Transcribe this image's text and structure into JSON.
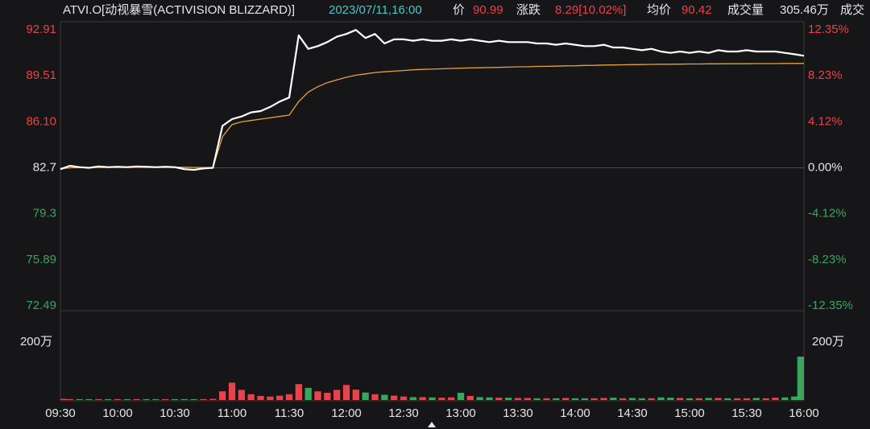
{
  "chart_data": {
    "type": "intraday",
    "header": {
      "title": "ATVI.O[动视暴雪(ACTIVISION BLIZZARD)]",
      "timestamp": "2023/07/11,16:00",
      "price_label": "价",
      "price": "90.99",
      "change_label": "涨跌",
      "change": "8.29[10.02%]",
      "avg_label": "均价",
      "avg": "90.42",
      "volume_label": "成交量",
      "volume": "305.46万",
      "cut_label": "成交"
    },
    "categories": [
      "09:30",
      null,
      null,
      null,
      null,
      null,
      "10:00",
      null,
      null,
      null,
      null,
      null,
      "10:30",
      null,
      null,
      null,
      null,
      null,
      "11:00",
      null,
      null,
      null,
      null,
      null,
      "11:30",
      null,
      null,
      null,
      null,
      null,
      "12:00",
      null,
      null,
      null,
      null,
      null,
      "12:30",
      null,
      null,
      null,
      null,
      null,
      "13:00",
      null,
      null,
      null,
      null,
      null,
      "13:30",
      null,
      null,
      null,
      null,
      null,
      "14:00",
      null,
      null,
      null,
      null,
      null,
      "14:30",
      null,
      null,
      null,
      null,
      null,
      "15:00",
      null,
      null,
      null,
      null,
      null,
      "15:30",
      null,
      null,
      null,
      null,
      null,
      "16:00"
    ],
    "series": [
      {
        "color": "#ffffff",
        "values": [
          82.6,
          82.85,
          82.75,
          82.7,
          82.8,
          82.75,
          82.78,
          82.75,
          82.8,
          82.78,
          82.75,
          82.78,
          82.75,
          82.6,
          82.55,
          82.65,
          82.7,
          85.8,
          86.3,
          86.5,
          86.8,
          86.9,
          87.2,
          87.6,
          87.9,
          92.5,
          91.5,
          91.7,
          92.0,
          92.4,
          92.6,
          92.9,
          92.3,
          92.6,
          91.9,
          92.2,
          92.2,
          92.1,
          92.2,
          92.1,
          92.1,
          92.2,
          92.1,
          92.2,
          92.1,
          92.0,
          92.1,
          92.0,
          92.0,
          92.0,
          91.9,
          91.9,
          91.8,
          91.9,
          91.8,
          91.7,
          91.7,
          91.8,
          91.6,
          91.6,
          91.5,
          91.4,
          91.5,
          91.3,
          91.2,
          91.3,
          91.2,
          91.3,
          91.2,
          91.4,
          91.3,
          91.3,
          91.4,
          91.3,
          91.3,
          91.3,
          91.2,
          91.1,
          90.99
        ]
      },
      {
        "color": "#e6a23c",
        "values": [
          82.62,
          82.7,
          82.72,
          82.72,
          82.73,
          82.74,
          82.74,
          82.74,
          82.75,
          82.75,
          82.75,
          82.75,
          82.75,
          82.74,
          82.73,
          82.72,
          82.72,
          85.0,
          85.9,
          86.1,
          86.2,
          86.3,
          86.4,
          86.5,
          86.6,
          87.6,
          88.3,
          88.7,
          89.0,
          89.2,
          89.4,
          89.55,
          89.65,
          89.75,
          89.8,
          89.85,
          89.9,
          89.95,
          89.98,
          90.0,
          90.02,
          90.05,
          90.07,
          90.09,
          90.1,
          90.12,
          90.13,
          90.15,
          90.17,
          90.18,
          90.2,
          90.21,
          90.22,
          90.24,
          90.25,
          90.27,
          90.28,
          90.3,
          90.31,
          90.32,
          90.33,
          90.34,
          90.35,
          90.36,
          90.36,
          90.37,
          90.38,
          90.38,
          90.39,
          90.39,
          90.4,
          90.4,
          90.4,
          90.41,
          90.41,
          90.41,
          90.42,
          90.42,
          90.42
        ]
      }
    ],
    "ylim": [
      72.49,
      92.91
    ],
    "yticks": [
      92.91,
      89.51,
      86.1,
      82.7,
      79.3,
      75.89,
      72.49
    ],
    "ytick_labels_fixed": [
      {
        "value": 86.1,
        "label": "86.10"
      }
    ],
    "y2lim": [
      -12.35,
      12.35
    ],
    "y2ticks": [
      {
        "value": 12.35,
        "label": "12.35%"
      },
      {
        "value": 8.23,
        "label": "8.23%"
      },
      {
        "value": 4.12,
        "label": "4.12%"
      },
      {
        "value": 0,
        "label": "0.00%"
      },
      {
        "value": -4.12,
        "label": "-4.12%"
      },
      {
        "value": -8.23,
        "label": "-8.23%"
      },
      {
        "value": -12.35,
        "label": "-12.35%"
      }
    ],
    "up_color": "#e8434a",
    "down_color": "#3aa55d",
    "volume": {
      "values": [
        4,
        3,
        3,
        3,
        3,
        3,
        3,
        3,
        3,
        3,
        3,
        3,
        3,
        3,
        3,
        3,
        4,
        30,
        60,
        35,
        20,
        14,
        12,
        15,
        20,
        55,
        42,
        30,
        25,
        35,
        52,
        36,
        26,
        20,
        18,
        15,
        12,
        10,
        10,
        9,
        8,
        9,
        25,
        14,
        10,
        9,
        8,
        8,
        7,
        7,
        6,
        6,
        6,
        7,
        6,
        6,
        6,
        7,
        8,
        6,
        7,
        6,
        6,
        9,
        8,
        7,
        6,
        6,
        7,
        7,
        6,
        6,
        6,
        7,
        6,
        8,
        9,
        12,
        150
      ],
      "ylim": [
        0,
        303
      ],
      "yticks": [
        {
          "value": 200,
          "label": "200万"
        }
      ]
    }
  }
}
